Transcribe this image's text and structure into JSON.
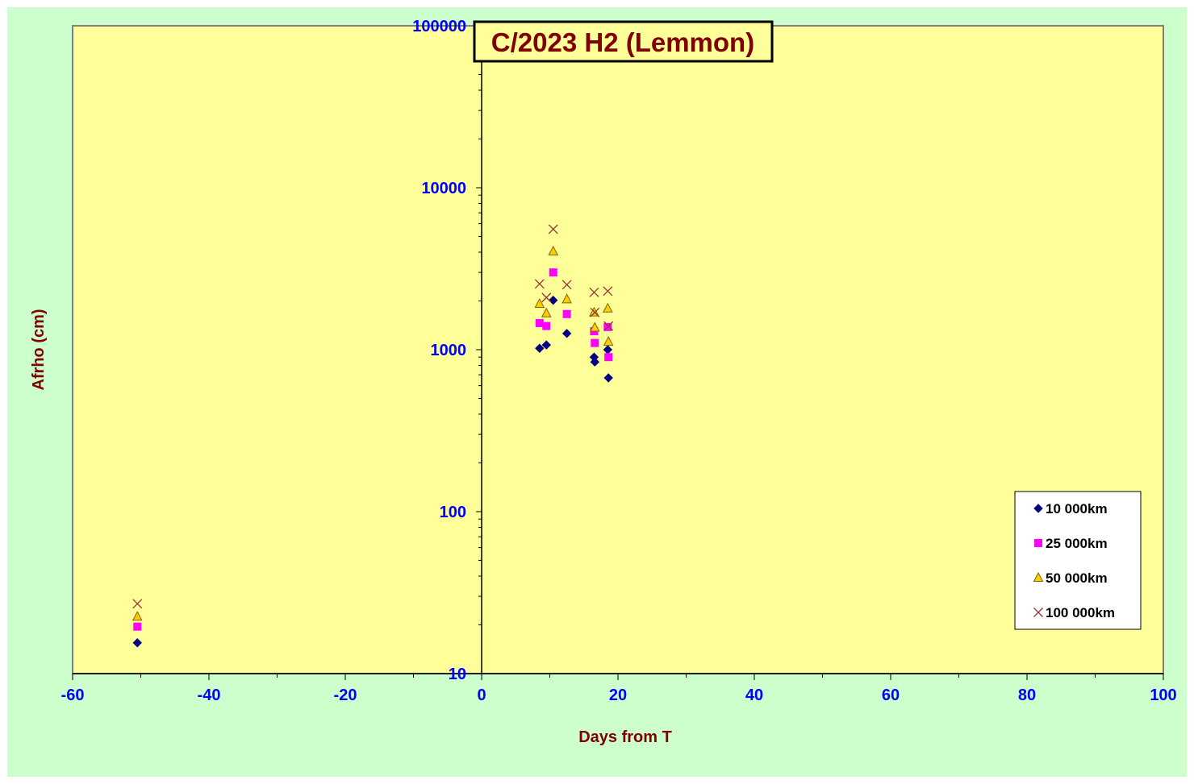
{
  "chart_data": {
    "type": "scatter",
    "title": "C/2023 H2 (Lemmon)",
    "xlabel": "Days from T",
    "ylabel": "Afrho (cm)",
    "xlim": [
      -60,
      100
    ],
    "ylim": [
      10,
      100000
    ],
    "y_scale": "log",
    "x_ticks": [
      "-60",
      "-40",
      "-20",
      "0",
      "20",
      "40",
      "60",
      "80",
      "100"
    ],
    "y_ticks": [
      "10",
      "100",
      "1000",
      "10000",
      "100000"
    ],
    "grid": false,
    "legend_position": "bottom-right",
    "colors": {
      "outer_background": "#CCFFCC",
      "plot_background": "#FFFF99",
      "tick_labels": "#0000FF",
      "titles": "#800000"
    },
    "series": [
      {
        "name": "10 000km",
        "marker": "diamond",
        "color": "#000080",
        "points": [
          [
            -50.5,
            15.5
          ],
          [
            8.5,
            1020
          ],
          [
            9.5,
            1070
          ],
          [
            10.5,
            2020
          ],
          [
            12.5,
            1260
          ],
          [
            16.5,
            900
          ],
          [
            16.6,
            840
          ],
          [
            18.5,
            1000
          ],
          [
            18.6,
            670
          ]
        ]
      },
      {
        "name": "25 000km",
        "marker": "square",
        "color": "#FF00FF",
        "points": [
          [
            -50.5,
            19.5
          ],
          [
            8.5,
            1460
          ],
          [
            9.5,
            1400
          ],
          [
            10.5,
            3000
          ],
          [
            12.5,
            1660
          ],
          [
            16.5,
            1300
          ],
          [
            16.6,
            1100
          ],
          [
            18.5,
            1380
          ],
          [
            18.6,
            900
          ]
        ]
      },
      {
        "name": "50 000km",
        "marker": "triangle",
        "color": "#FFCC00",
        "points": [
          [
            -50.5,
            22.5
          ],
          [
            8.5,
            1920
          ],
          [
            9.5,
            1680
          ],
          [
            10.5,
            4050
          ],
          [
            12.5,
            2050
          ],
          [
            16.5,
            1700
          ],
          [
            16.6,
            1370
          ],
          [
            18.5,
            1800
          ],
          [
            18.6,
            1120
          ]
        ]
      },
      {
        "name": "100 000km",
        "marker": "x",
        "color": "#993333",
        "points": [
          [
            -50.5,
            27
          ],
          [
            8.5,
            2550
          ],
          [
            9.5,
            2100
          ],
          [
            10.5,
            5550
          ],
          [
            12.5,
            2520
          ],
          [
            16.5,
            2260
          ],
          [
            16.6,
            1700
          ],
          [
            18.5,
            2300
          ],
          [
            18.6,
            1400
          ]
        ]
      }
    ]
  }
}
